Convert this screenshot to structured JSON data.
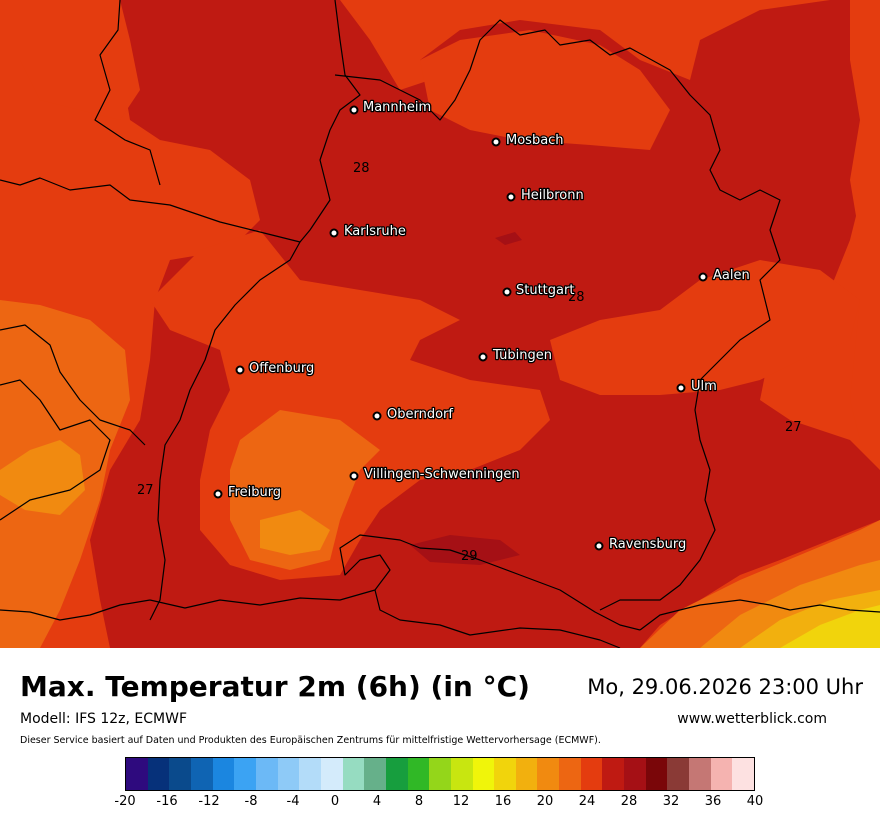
{
  "title": "Max. Temperatur 2m (6h) (in °C)",
  "datetime": "Mo, 29.06.2026 23:00 Uhr",
  "model": "Modell: IFS 12z, ECMWF",
  "website": "www.wetterblick.com",
  "disclaimer": "Dieser Service basiert auf Daten und Produkten des Europäischen Zentrums für mittelfristige Wettervorhersage (ECMWF).",
  "cities": [
    {
      "name": "Mannheim"
    },
    {
      "name": "Mosbach"
    },
    {
      "name": "Heilbronn"
    },
    {
      "name": "Karlsruhe"
    },
    {
      "name": "Stuttgart"
    },
    {
      "name": "Aalen"
    },
    {
      "name": "Tübingen"
    },
    {
      "name": "Offenburg"
    },
    {
      "name": "Ulm"
    },
    {
      "name": "Oberndorf"
    },
    {
      "name": "Villingen-Schwenningen"
    },
    {
      "name": "Freiburg"
    },
    {
      "name": "Ravensburg"
    }
  ],
  "isolines": [
    "28",
    "28",
    "27",
    "27",
    "29"
  ],
  "colorbar": {
    "colors": [
      "#2e0a7e",
      "#06317a",
      "#0a4a8c",
      "#0f64b3",
      "#1b86e0",
      "#3ba3f3",
      "#6cb9f6",
      "#8ecaf7",
      "#b3dcf9",
      "#d4ebfb",
      "#96dcc1",
      "#66b08a",
      "#179e3e",
      "#30b826",
      "#94d61a",
      "#c8e610",
      "#f0f50a",
      "#f1d40c",
      "#f2b00e",
      "#f18a10",
      "#ed6612",
      "#e43c0f",
      "#bf1a12",
      "#a51015",
      "#7a0609",
      "#8a3a36",
      "#c57774",
      "#f5b3b0",
      "#fde1e1"
    ],
    "ticks": [
      "-20",
      "-16",
      "-12",
      "-8",
      "-4",
      "0",
      "4",
      "8",
      "12",
      "16",
      "20",
      "24",
      "28",
      "32",
      "36",
      "40"
    ]
  },
  "map_colors": {
    "t26": "#ed6612",
    "t27": "#e43c0f",
    "t28": "#bf1a12",
    "t29": "#a51015",
    "t25": "#f18a10",
    "t22": "#f1d40c",
    "t23": "#f2b00e"
  }
}
